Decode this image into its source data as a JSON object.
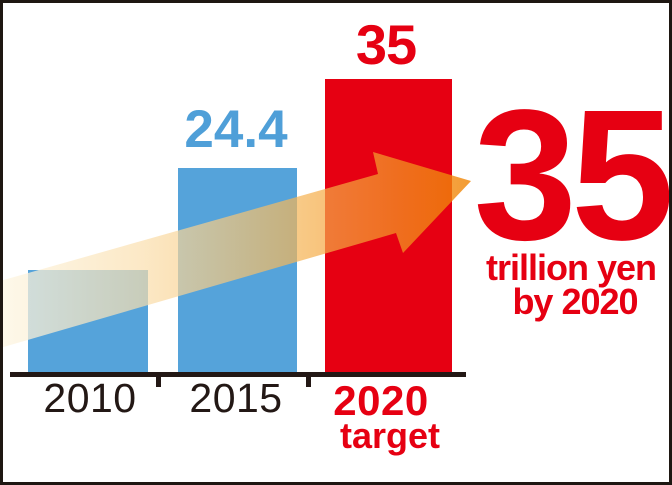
{
  "colors": {
    "bar_blue": "#55a3da",
    "bar_red": "#e60012",
    "axis_black": "#231815",
    "label_blue": "#4f9fd8",
    "label_red": "#e60012",
    "arrow_tail": "#fdf6e4",
    "arrow_head": "#f08300",
    "frame_border": "#1e1712",
    "background": "#ffffff"
  },
  "chart_data": {
    "type": "bar",
    "categories": [
      "2010",
      "2015",
      "2020"
    ],
    "category_note_2020": "target",
    "values": [
      12.2,
      24.4,
      35
    ],
    "values_note": "2010 bar is unlabeled; 12.2 estimated from bar height scale",
    "value_labels": [
      "",
      "24.4",
      "35"
    ],
    "bar_colors": [
      "#55a3da",
      "#55a3da",
      "#e60012"
    ],
    "unit": "trillion yen",
    "ylim": [
      0,
      37
    ],
    "grid": false,
    "legend": false,
    "annotation": {
      "big_value": "35",
      "line1": "trillion yen",
      "line2": "by 2020",
      "color": "#e60012"
    },
    "trend_arrow": "semi-transparent orange arrow rising from lower-left to upper-right"
  }
}
